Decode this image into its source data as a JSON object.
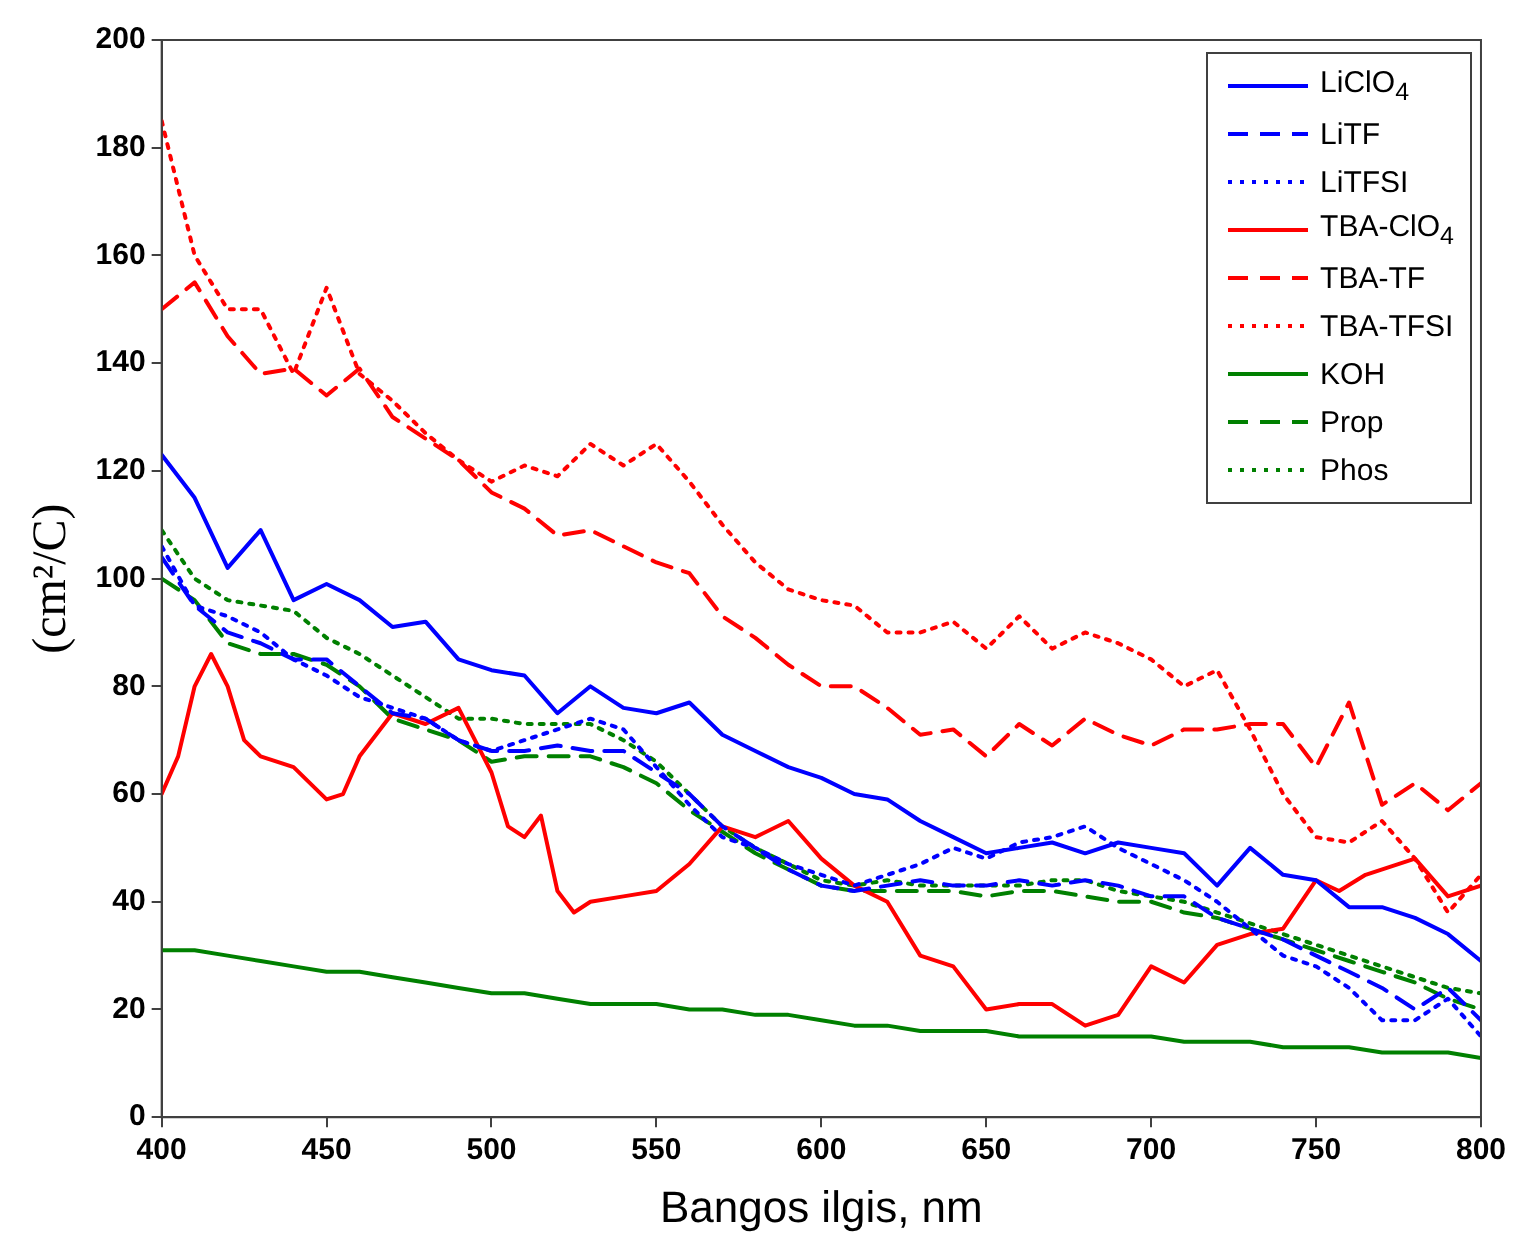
{
  "chart_data": {
    "type": "line",
    "xlabel": "Bangos ilgis, nm",
    "ylabel": "(cm²/C)",
    "xlim": [
      400,
      800
    ],
    "ylim": [
      0,
      200
    ],
    "xticks": [
      400,
      450,
      500,
      550,
      600,
      650,
      700,
      750,
      800
    ],
    "yticks": [
      0,
      20,
      40,
      60,
      80,
      100,
      120,
      140,
      160,
      180,
      200
    ],
    "legend": "top right",
    "marker": "none",
    "x": [
      400,
      410,
      420,
      430,
      440,
      450,
      460,
      470,
      480,
      490,
      500,
      510,
      520,
      530,
      540,
      550,
      560,
      570,
      580,
      590,
      600,
      610,
      620,
      630,
      640,
      650,
      660,
      670,
      680,
      690,
      700,
      710,
      720,
      730,
      740,
      750,
      760,
      770,
      780,
      790,
      800
    ],
    "series": [
      {
        "name": "LiClO$_{4}$",
        "color": "#0000ff",
        "line_style": "solid",
        "values": [
          123,
          115,
          102,
          109,
          96,
          99,
          96,
          91,
          92,
          85,
          83,
          82,
          75,
          80,
          76,
          75,
          77,
          71,
          68,
          65,
          63,
          60,
          59,
          55,
          52,
          49,
          50,
          51,
          49,
          51,
          50,
          49,
          43,
          50,
          45,
          44,
          39,
          39,
          37,
          34,
          29
        ]
      },
      {
        "name": "LiTF",
        "color": "#0000ff",
        "line_style": "dashed",
        "values": [
          104,
          95,
          90,
          88,
          85,
          85,
          80,
          75,
          74,
          70,
          68,
          68,
          69,
          68,
          68,
          64,
          60,
          54,
          50,
          46,
          43,
          42,
          43,
          44,
          43,
          43,
          44,
          43,
          44,
          43,
          41,
          41,
          37,
          35,
          33,
          30,
          27,
          24,
          20,
          24,
          18
        ]
      },
      {
        "name": "LiTFSI",
        "color": "#0000ff",
        "line_style": "dotted",
        "values": [
          106,
          95,
          93,
          90,
          85,
          82,
          78,
          76,
          74,
          70,
          68,
          70,
          72,
          74,
          72,
          65,
          58,
          52,
          50,
          47,
          45,
          43,
          45,
          47,
          50,
          48,
          51,
          52,
          54,
          50,
          47,
          44,
          40,
          35,
          30,
          28,
          24,
          18,
          18,
          22,
          15
        ]
      },
      {
        "name": "TBA-ClO$_{4}$",
        "color": "#ff0000",
        "line_style": "solid",
        "x": [
          400,
          405,
          410,
          415,
          420,
          425,
          430,
          440,
          450,
          455,
          460,
          470,
          480,
          490,
          500,
          505,
          510,
          515,
          520,
          525,
          530,
          540,
          550,
          560,
          570,
          580,
          590,
          600,
          610,
          620,
          630,
          640,
          650,
          660,
          670,
          680,
          690,
          700,
          710,
          720,
          730,
          740,
          750,
          757,
          765,
          780,
          790,
          800
        ],
        "values": [
          60,
          67,
          80,
          86,
          80,
          70,
          67,
          65,
          59,
          60,
          67,
          75,
          73,
          76,
          64,
          54,
          52,
          56,
          42,
          38,
          40,
          41,
          42,
          47,
          54,
          52,
          55,
          48,
          43,
          40,
          30,
          28,
          20,
          21,
          21,
          17,
          19,
          28,
          25,
          32,
          34,
          35,
          44,
          42,
          45,
          48,
          41,
          43
        ]
      },
      {
        "name": "TBA-TF",
        "color": "#ff0000",
        "line_style": "dashed",
        "values": [
          150,
          155,
          145,
          138,
          139,
          134,
          139,
          130,
          126,
          122,
          116,
          113,
          108,
          109,
          106,
          103,
          101,
          93,
          89,
          84,
          80,
          80,
          76,
          71,
          72,
          67,
          73,
          69,
          74,
          71,
          69,
          72,
          72,
          73,
          73,
          65,
          77,
          58,
          62,
          57,
          62
        ]
      },
      {
        "name": "TBA-TFSI",
        "color": "#ff0000",
        "line_style": "dotted",
        "values": [
          185,
          160,
          150,
          150,
          138,
          154,
          138,
          133,
          127,
          122,
          118,
          121,
          119,
          125,
          121,
          125,
          118,
          110,
          103,
          98,
          96,
          95,
          90,
          90,
          92,
          87,
          93,
          87,
          90,
          88,
          85,
          80,
          83,
          72,
          60,
          52,
          51,
          55,
          48,
          38,
          45
        ]
      },
      {
        "name": "KOH",
        "color": "#008000",
        "line_style": "solid",
        "values": [
          31,
          31,
          30,
          29,
          28,
          27,
          27,
          26,
          25,
          24,
          23,
          23,
          22,
          21,
          21,
          21,
          20,
          20,
          19,
          19,
          18,
          17,
          17,
          16,
          16,
          16,
          15,
          15,
          15,
          15,
          15,
          14,
          14,
          14,
          13,
          13,
          13,
          12,
          12,
          12,
          11
        ]
      },
      {
        "name": "Prop",
        "color": "#008000",
        "line_style": "dashed",
        "values": [
          100,
          96,
          88,
          86,
          86,
          84,
          80,
          74,
          72,
          70,
          66,
          67,
          67,
          67,
          65,
          62,
          57,
          53,
          49,
          46,
          43,
          42,
          42,
          42,
          42,
          41,
          42,
          42,
          41,
          40,
          40,
          38,
          37,
          35,
          33,
          31,
          29,
          27,
          25,
          22,
          20
        ]
      },
      {
        "name": "Phos",
        "color": "#008000",
        "line_style": "dotted",
        "values": [
          109,
          100,
          96,
          95,
          94,
          89,
          86,
          82,
          78,
          74,
          74,
          73,
          73,
          73,
          70,
          66,
          60,
          54,
          50,
          47,
          44,
          43,
          44,
          43,
          43,
          43,
          43,
          44,
          44,
          42,
          41,
          40,
          38,
          36,
          34,
          32,
          30,
          28,
          26,
          24,
          23
        ]
      }
    ]
  }
}
